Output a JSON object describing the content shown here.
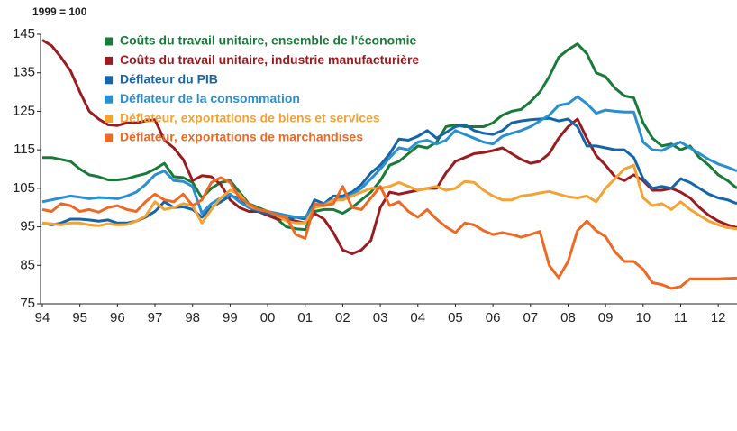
{
  "chart_data": {
    "type": "line",
    "subtitle": "1999 = 100",
    "x": [
      1994,
      1994.25,
      1994.5,
      1994.75,
      1995,
      1995.25,
      1995.5,
      1995.75,
      1996,
      1996.25,
      1996.5,
      1996.75,
      1997,
      1997.25,
      1997.5,
      1997.75,
      1998,
      1998.25,
      1998.5,
      1998.75,
      1999,
      1999.25,
      1999.5,
      1999.75,
      2000,
      2000.25,
      2000.5,
      2000.75,
      2001,
      2001.25,
      2001.5,
      2001.75,
      2002,
      2002.25,
      2002.5,
      2002.75,
      2003,
      2003.25,
      2003.5,
      2003.75,
      2004,
      2004.25,
      2004.5,
      2004.75,
      2005,
      2005.25,
      2005.5,
      2005.75,
      2006,
      2006.25,
      2006.5,
      2006.75,
      2007,
      2007.25,
      2007.5,
      2007.75,
      2008,
      2008.25,
      2008.5,
      2008.75,
      2009,
      2009.25,
      2009.5,
      2009.75,
      2010,
      2010.25,
      2010.5,
      2010.75,
      2011,
      2011.25,
      2011.5,
      2011.75,
      2012,
      2012.25,
      2012.5
    ],
    "series": [
      {
        "name": "Coûts du travail unitaire, ensemble de l'économie",
        "color": "#1a7a3a",
        "values": [
          113,
          113,
          112.5,
          112,
          110,
          108.5,
          108,
          107.2,
          107.2,
          107.5,
          108.2,
          108.8,
          110,
          111.5,
          108,
          107.8,
          106.5,
          102.5,
          105,
          106.5,
          107,
          104,
          101,
          100,
          99,
          97,
          95,
          94.5,
          94.3,
          99,
          99.5,
          99.5,
          98.5,
          100,
          102,
          104,
          107,
          111,
          112,
          114,
          116,
          115.5,
          117,
          121,
          121.5,
          121,
          121,
          121,
          122,
          124,
          125,
          125.5,
          127.5,
          130,
          134,
          139,
          141,
          142.5,
          140,
          135,
          134,
          131,
          129,
          128.5,
          122,
          118,
          116,
          116.5,
          115,
          116,
          113,
          111,
          108.5,
          107,
          105
        ]
      },
      {
        "name": "Coûts du travail unitaire, industrie manufacturière",
        "color": "#9b1c20",
        "values": [
          143.5,
          142,
          139,
          135.5,
          130,
          125,
          123,
          121.5,
          121.3,
          122,
          122,
          122.5,
          122.8,
          117.5,
          115.5,
          112.5,
          107,
          108.3,
          108,
          106,
          102,
          100,
          99,
          99,
          98,
          97,
          97,
          96.5,
          96,
          98.5,
          97,
          93.5,
          89,
          88,
          89,
          91.5,
          100,
          104,
          103.5,
          104,
          104.5,
          105,
          105,
          109,
          112,
          113,
          114,
          114.3,
          114.8,
          115.5,
          114,
          112.5,
          111.5,
          112,
          114,
          118,
          121,
          123,
          118,
          113.5,
          111,
          108,
          107,
          108.5,
          107,
          104.5,
          104.5,
          105,
          104,
          102.5,
          100,
          98,
          96.5,
          95.5,
          94.8
        ]
      },
      {
        "name": "Déflateur du PIB",
        "color": "#1565a8",
        "values": [
          96,
          95.5,
          96,
          97,
          97,
          96.8,
          96.5,
          96.8,
          96,
          96,
          96.5,
          97.5,
          99,
          101.5,
          100,
          100.2,
          99.5,
          97.5,
          100,
          101.5,
          103,
          102.5,
          100,
          99,
          98.5,
          98,
          97,
          97.5,
          97,
          102,
          101,
          103,
          103,
          104,
          106,
          109,
          111,
          114,
          117.8,
          117.5,
          118.5,
          120,
          118,
          119.5,
          121,
          121.5,
          120,
          119.3,
          119,
          120,
          122,
          122.5,
          122.8,
          123,
          123.2,
          122.5,
          123,
          121,
          116,
          116,
          115.5,
          115,
          115,
          113,
          107.5,
          105,
          105.5,
          105,
          107.5,
          106.5,
          105,
          103.5,
          102.5,
          102,
          101
        ]
      },
      {
        "name": "Déflateur de la consommation",
        "color": "#2a8fcf",
        "values": [
          101.5,
          102,
          102.5,
          103,
          102.7,
          102.3,
          102.6,
          102.5,
          102.3,
          103,
          104,
          106,
          108.5,
          109.5,
          107,
          106.8,
          105.5,
          98.5,
          101,
          102.5,
          103.5,
          101.5,
          100,
          99.5,
          99,
          98.5,
          98,
          97.5,
          97.5,
          100.5,
          101,
          102,
          102.5,
          103.5,
          105,
          107.5,
          110,
          113,
          115.5,
          115,
          117,
          117.5,
          116.5,
          117.5,
          120,
          119,
          118,
          117,
          116.5,
          118.5,
          119.3,
          120,
          121,
          122.5,
          124,
          126.5,
          127,
          128.8,
          127,
          124.5,
          125.3,
          125,
          124.8,
          124.8,
          117,
          115,
          114.8,
          116,
          117,
          115.5,
          114,
          112.5,
          111.3,
          110.5,
          109.5
        ]
      },
      {
        "name": "Déflateur, exportations de biens et services",
        "color": "#f4a234",
        "values": [
          96,
          95.8,
          95.5,
          96,
          96,
          95.5,
          95.3,
          95.8,
          95.5,
          95.6,
          96.5,
          97.8,
          101.5,
          99.5,
          100,
          101,
          100.5,
          96,
          99.5,
          102.5,
          104.5,
          103.5,
          100.5,
          99.5,
          99,
          98,
          96.5,
          96,
          96,
          100,
          100.5,
          102,
          102,
          103,
          104,
          105,
          105,
          105.5,
          106.5,
          105.5,
          104.5,
          105,
          105.5,
          104.5,
          105,
          106.8,
          106.5,
          104.5,
          103,
          102,
          102,
          103,
          103.3,
          103.8,
          104.2,
          103.5,
          102.8,
          102.5,
          103,
          101.5,
          105,
          107.5,
          110,
          111,
          102.5,
          100.5,
          101,
          99.5,
          101.5,
          99.5,
          98,
          96.5,
          95.5,
          94.8,
          94.5
        ]
      },
      {
        "name": "Déflateur, exportations de marchandises",
        "color": "#ee6a24",
        "values": [
          99.5,
          99,
          101,
          100.5,
          99,
          99.5,
          98.8,
          100,
          100.5,
          99.5,
          99,
          101.5,
          103.5,
          102,
          101.5,
          103.5,
          100.5,
          102,
          106.5,
          107.8,
          106.5,
          102.5,
          101,
          99.5,
          99,
          98,
          97.5,
          93,
          92,
          101,
          100.5,
          101,
          105.5,
          100,
          99.5,
          102.5,
          105.5,
          100.5,
          101.5,
          99,
          97.5,
          99.5,
          97,
          95,
          93.5,
          96,
          95.5,
          94,
          93,
          93.5,
          93,
          92.3,
          93,
          93.8,
          85,
          81.8,
          86,
          94,
          96.5,
          94,
          92.5,
          88.5,
          86,
          86,
          84,
          80.5,
          80,
          79,
          79.5,
          81.5,
          81.5,
          81.5,
          81.5,
          81.6,
          81.7
        ]
      }
    ],
    "xlim": [
      1994,
      2012.5
    ],
    "xticks": [
      {
        "value": 1994,
        "label": "94"
      },
      {
        "value": 1995,
        "label": "95"
      },
      {
        "value": 1996,
        "label": "96"
      },
      {
        "value": 1997,
        "label": "97"
      },
      {
        "value": 1998,
        "label": "98"
      },
      {
        "value": 1999,
        "label": "99"
      },
      {
        "value": 2000,
        "label": "00"
      },
      {
        "value": 2001,
        "label": "01"
      },
      {
        "value": 2002,
        "label": "02"
      },
      {
        "value": 2003,
        "label": "03"
      },
      {
        "value": 2004,
        "label": "04"
      },
      {
        "value": 2005,
        "label": "05"
      },
      {
        "value": 2006,
        "label": "06"
      },
      {
        "value": 2007,
        "label": "07"
      },
      {
        "value": 2008,
        "label": "08"
      },
      {
        "value": 2009,
        "label": "09"
      },
      {
        "value": 2010,
        "label": "10"
      },
      {
        "value": 2011,
        "label": "11"
      },
      {
        "value": 2012,
        "label": "12"
      }
    ],
    "ylim": [
      75,
      145
    ],
    "yticks": [
      75,
      85,
      95,
      105,
      115,
      125,
      135,
      145
    ],
    "grid": false,
    "legend": "top-left"
  }
}
